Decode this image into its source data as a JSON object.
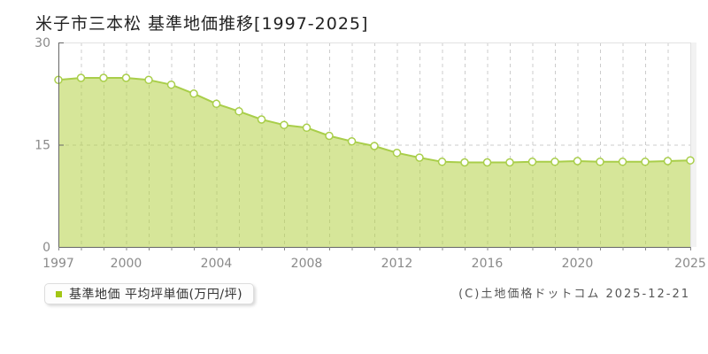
{
  "title": "米子市三本松 基準地価推移[1997-2025]",
  "legend": {
    "label": "基準地価 平均坪単価(万円/坪)",
    "swatch_color": "#a2c614"
  },
  "copyright": "(C)土地価格ドットコム 2025-12-21",
  "chart_data": {
    "type": "area",
    "title": "米子市三本松 基準地価推移[1997-2025]",
    "x": [
      1997,
      1998,
      1999,
      2000,
      2001,
      2002,
      2003,
      2004,
      2005,
      2006,
      2007,
      2008,
      2009,
      2010,
      2011,
      2012,
      2013,
      2014,
      2015,
      2016,
      2017,
      2018,
      2019,
      2020,
      2021,
      2022,
      2023,
      2024,
      2025
    ],
    "series": [
      {
        "name": "基準地価 平均坪単価(万円/坪)",
        "values": [
          24.5,
          24.8,
          24.8,
          24.8,
          24.5,
          23.8,
          22.5,
          21.0,
          19.9,
          18.7,
          17.9,
          17.5,
          16.3,
          15.5,
          14.8,
          13.8,
          13.1,
          12.5,
          12.4,
          12.4,
          12.4,
          12.5,
          12.5,
          12.6,
          12.5,
          12.5,
          12.5,
          12.6,
          12.7
        ]
      }
    ],
    "xlabel": "",
    "ylabel": "",
    "ylim": [
      0,
      30
    ],
    "yticks": [
      0,
      15,
      30
    ],
    "xtick_labels": [
      1997,
      2000,
      2004,
      2008,
      2012,
      2016,
      2020,
      2025
    ],
    "grid": true,
    "legend_position": "bottom-left",
    "colors": {
      "line": "#a9ce4a",
      "fill": "rgba(180,210,70,0.55)",
      "marker_fill": "#ffffff",
      "grid": "#cccccc",
      "plot_border": "#e2e2e2",
      "plot_shadow": "#f2f2f2",
      "axis": "#666666",
      "tick": "#888888",
      "tick_text": "#8a8a8a"
    }
  }
}
